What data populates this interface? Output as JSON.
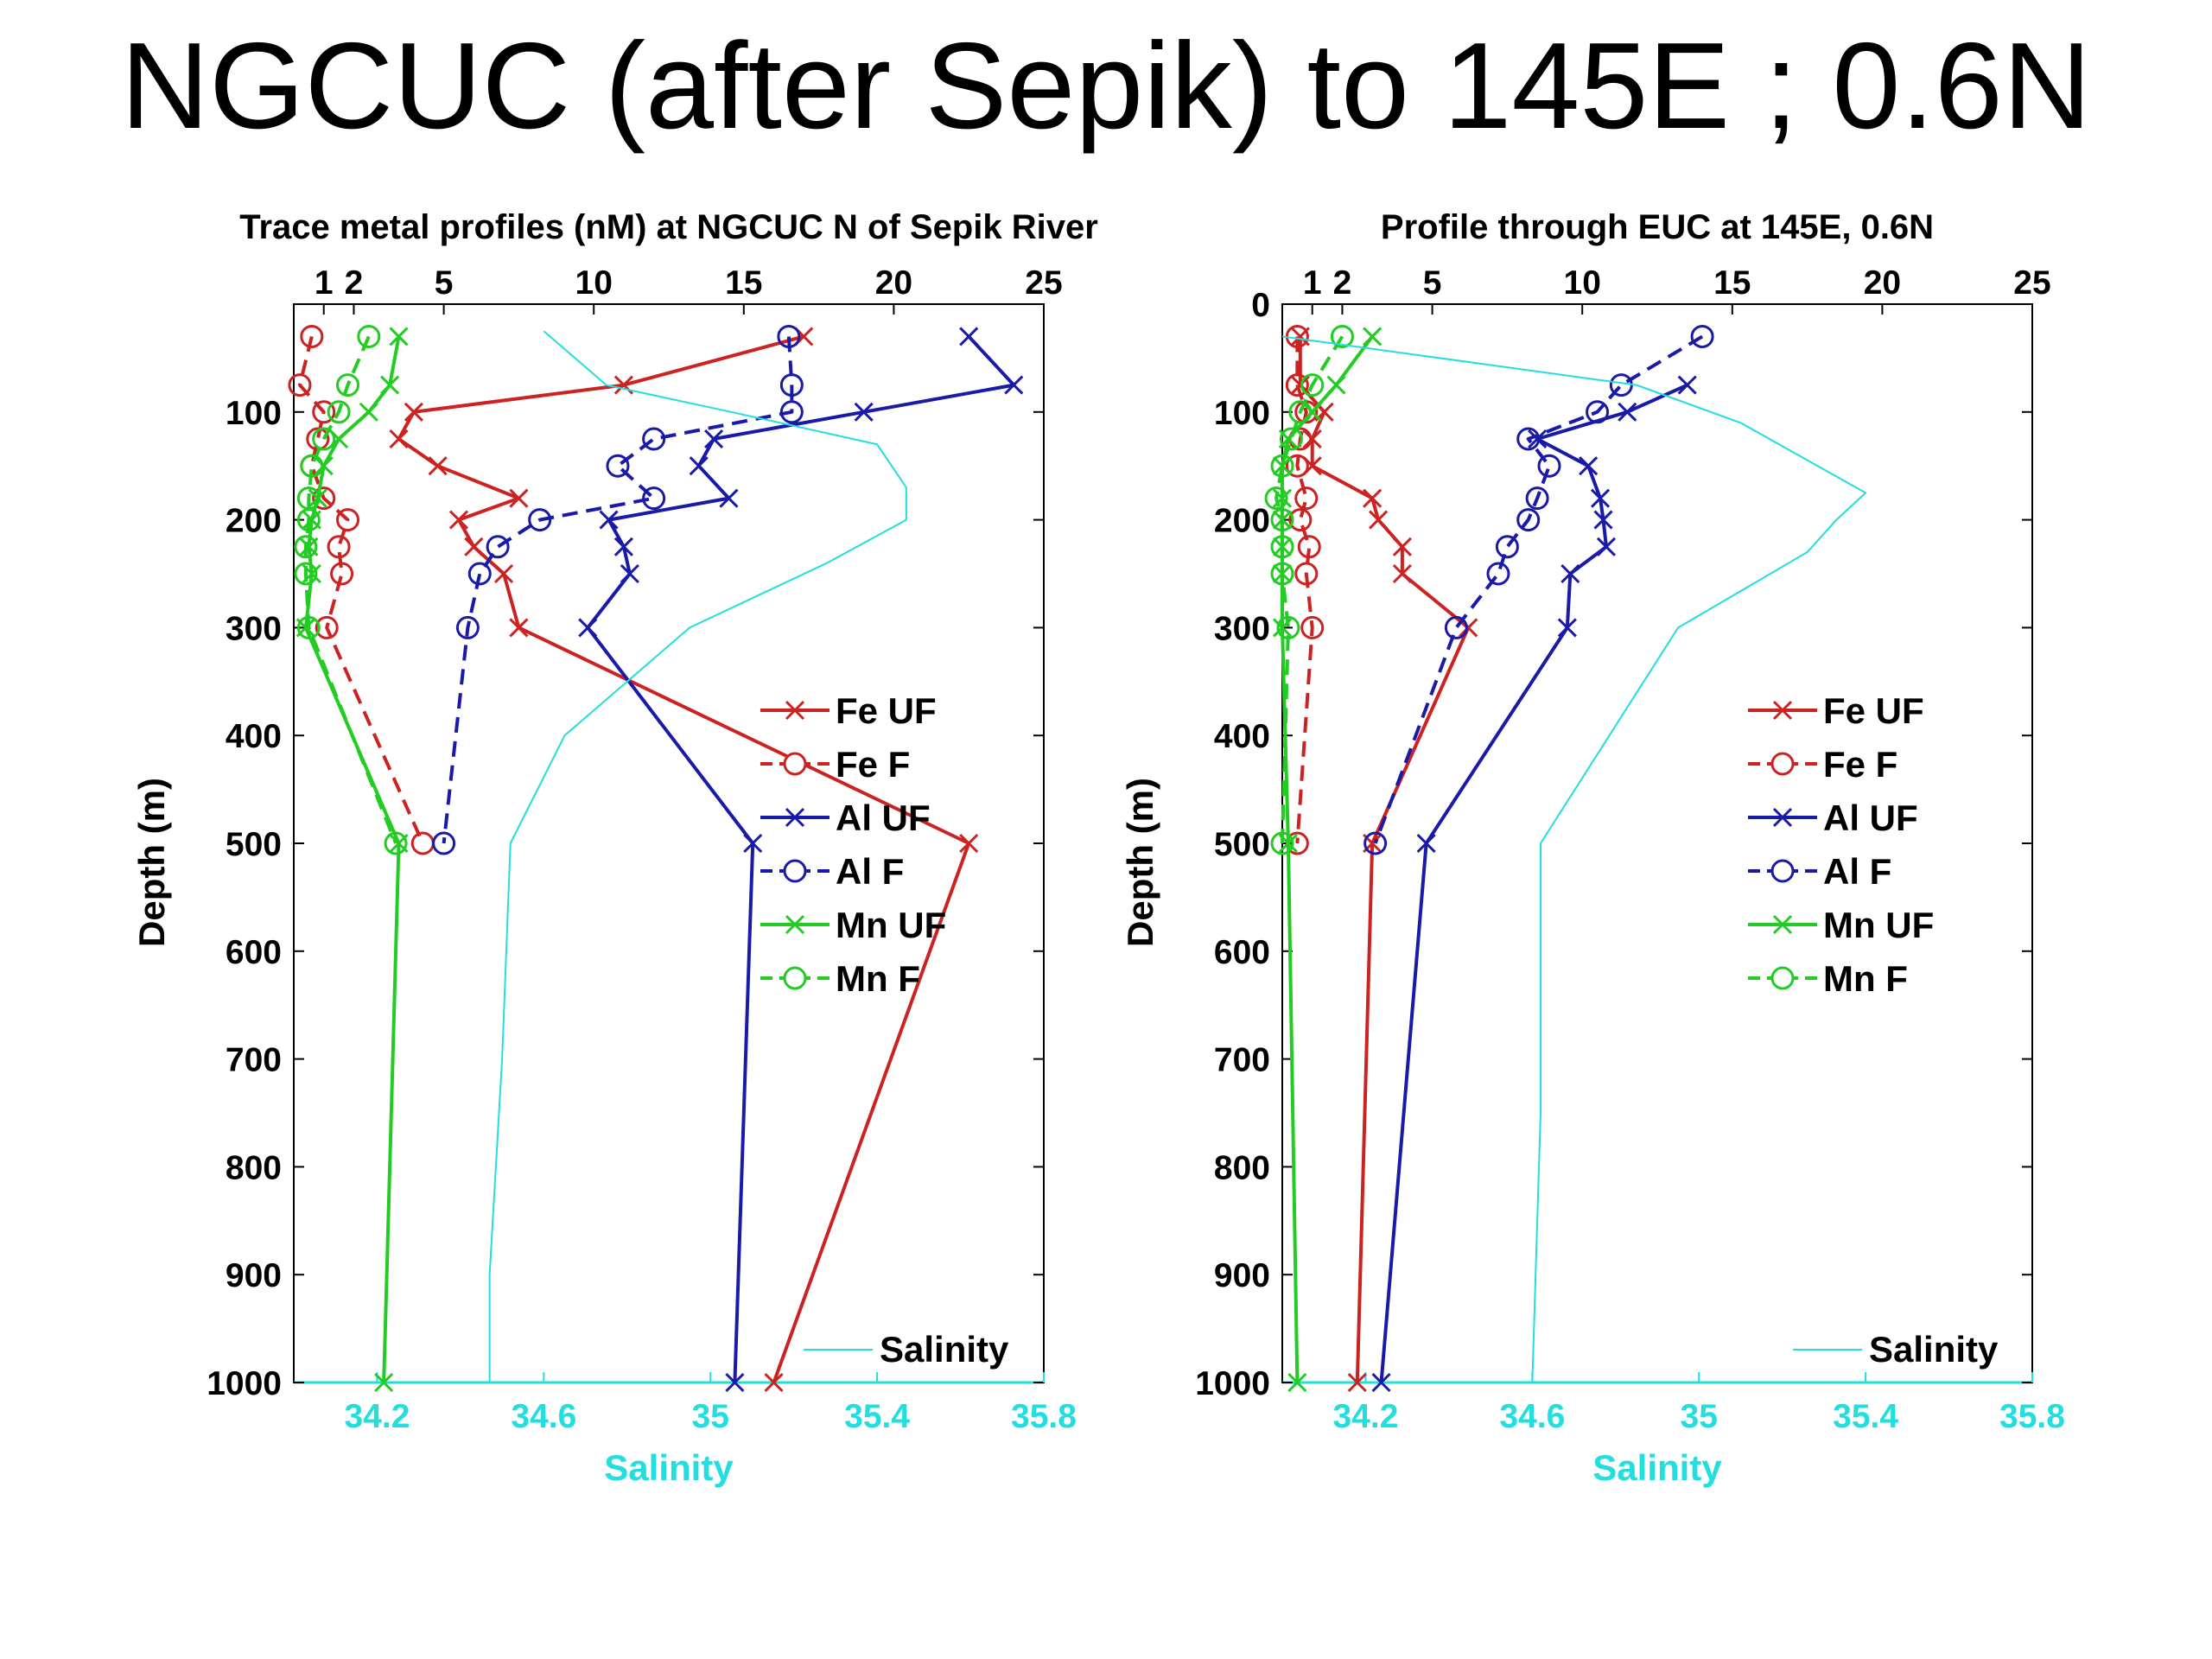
{
  "title": "NGCUC (after Sepik) to 145E ; 0.6N",
  "chart_data": [
    {
      "type": "line",
      "title": "Trace metal profiles (nM) at NGCUC N of Sepik River",
      "ylabel": "Depth (m)",
      "xlabel_bottom": "Salinity",
      "ylim": [
        1000,
        0
      ],
      "xlim_top": [
        0,
        25
      ],
      "xlim_bottom": [
        34.0,
        35.8
      ],
      "yticks": [
        100,
        200,
        300,
        400,
        500,
        600,
        700,
        800,
        900,
        1000
      ],
      "xticks_top": [
        1,
        2,
        5,
        10,
        15,
        20,
        25
      ],
      "xticks_bottom": [
        34.2,
        34.6,
        35,
        35.4,
        35.8
      ],
      "legend_placement": "right",
      "series": [
        {
          "name": "Fe UF",
          "color": "#cc2222",
          "dashed": false,
          "marker": "x",
          "points": [
            [
              17,
              30
            ],
            [
              11,
              75
            ],
            [
              4,
              100
            ],
            [
              3.5,
              125
            ],
            [
              4.8,
              150
            ],
            [
              7.5,
              180
            ],
            [
              5.5,
              200
            ],
            [
              6,
              225
            ],
            [
              7,
              250
            ],
            [
              7.5,
              300
            ],
            [
              22.5,
              500
            ],
            [
              16,
              1000
            ]
          ]
        },
        {
          "name": "Fe F",
          "color": "#cc2222",
          "dashed": true,
          "marker": "o",
          "points": [
            [
              0.6,
              30
            ],
            [
              0.2,
              75
            ],
            [
              1,
              100
            ],
            [
              0.8,
              125
            ],
            [
              0.6,
              150
            ],
            [
              1,
              180
            ],
            [
              1.8,
              200
            ],
            [
              1.5,
              225
            ],
            [
              1.6,
              250
            ],
            [
              1.1,
              300
            ],
            [
              4.3,
              500
            ]
          ]
        },
        {
          "name": "Al UF",
          "color": "#1a1aa8",
          "dashed": false,
          "marker": "x",
          "points": [
            [
              22.5,
              30
            ],
            [
              24,
              75
            ],
            [
              19,
              100
            ],
            [
              14,
              125
            ],
            [
              13.5,
              150
            ],
            [
              14.5,
              180
            ],
            [
              10.5,
              200
            ],
            [
              11,
              225
            ],
            [
              11.2,
              250
            ],
            [
              9.8,
              300
            ],
            [
              15.3,
              500
            ],
            [
              14.7,
              1000
            ]
          ]
        },
        {
          "name": "Al F",
          "color": "#1a1aa8",
          "dashed": true,
          "marker": "o",
          "points": [
            [
              16.5,
              30
            ],
            [
              16.6,
              75
            ],
            [
              16.6,
              100
            ],
            [
              12,
              125
            ],
            [
              10.8,
              150
            ],
            [
              12,
              180
            ],
            [
              8.2,
              200
            ],
            [
              6.8,
              225
            ],
            [
              6.2,
              250
            ],
            [
              5.8,
              300
            ],
            [
              5,
              500
            ]
          ]
        },
        {
          "name": "Mn UF",
          "color": "#22cc22",
          "dashed": false,
          "marker": "x",
          "points": [
            [
              3.5,
              30
            ],
            [
              3.2,
              75
            ],
            [
              2.5,
              100
            ],
            [
              1.5,
              125
            ],
            [
              1,
              150
            ],
            [
              0.8,
              180
            ],
            [
              0.6,
              200
            ],
            [
              0.5,
              225
            ],
            [
              0.6,
              250
            ],
            [
              0.4,
              300
            ],
            [
              3.5,
              500
            ],
            [
              3,
              1000
            ]
          ]
        },
        {
          "name": "Mn F",
          "color": "#22cc22",
          "dashed": true,
          "marker": "o",
          "points": [
            [
              2.5,
              30
            ],
            [
              1.8,
              75
            ],
            [
              1.5,
              100
            ],
            [
              1,
              125
            ],
            [
              0.6,
              150
            ],
            [
              0.5,
              180
            ],
            [
              0.5,
              200
            ],
            [
              0.4,
              225
            ],
            [
              0.4,
              250
            ],
            [
              0.5,
              300
            ],
            [
              3.4,
              500
            ]
          ]
        },
        {
          "name": "Salinity",
          "color": "#22dede",
          "dashed": false,
          "marker": "none",
          "axis": "bottom",
          "points": [
            [
              34.6,
              25
            ],
            [
              34.75,
              75
            ],
            [
              35.05,
              100
            ],
            [
              35.4,
              130
            ],
            [
              35.47,
              170
            ],
            [
              35.47,
              200
            ],
            [
              35.28,
              240
            ],
            [
              34.95,
              300
            ],
            [
              34.65,
              400
            ],
            [
              34.52,
              500
            ],
            [
              34.5,
              700
            ],
            [
              34.47,
              900
            ],
            [
              34.47,
              1000
            ]
          ]
        }
      ]
    },
    {
      "type": "line",
      "title": "Profile through EUC at 145E, 0.6N",
      "ylabel": "Depth (m)",
      "xlabel_bottom": "Salinity",
      "ylim": [
        1000,
        0
      ],
      "xlim_top": [
        0,
        25
      ],
      "xlim_bottom": [
        34.0,
        35.8
      ],
      "yticks": [
        0,
        100,
        200,
        300,
        400,
        500,
        600,
        700,
        800,
        900,
        1000
      ],
      "xticks_top": [
        1,
        2,
        5,
        10,
        15,
        20,
        25
      ],
      "xticks_bottom": [
        34.2,
        34.6,
        35,
        35.4,
        35.8
      ],
      "legend_placement": "right",
      "series": [
        {
          "name": "Fe UF",
          "color": "#cc2222",
          "dashed": false,
          "marker": "x",
          "points": [
            [
              0.6,
              30
            ],
            [
              0.6,
              75
            ],
            [
              1.4,
              100
            ],
            [
              1,
              125
            ],
            [
              1,
              150
            ],
            [
              3,
              180
            ],
            [
              3.2,
              200
            ],
            [
              4,
              225
            ],
            [
              4,
              250
            ],
            [
              6.2,
              300
            ],
            [
              3,
              500
            ],
            [
              2.5,
              1000
            ]
          ]
        },
        {
          "name": "Fe F",
          "color": "#cc2222",
          "dashed": true,
          "marker": "o",
          "points": [
            [
              0.5,
              30
            ],
            [
              0.5,
              75
            ],
            [
              0.8,
              100
            ],
            [
              0.6,
              125
            ],
            [
              0.5,
              150
            ],
            [
              0.8,
              180
            ],
            [
              0.6,
              200
            ],
            [
              0.9,
              225
            ],
            [
              0.8,
              250
            ],
            [
              1,
              300
            ],
            [
              0.5,
              500
            ]
          ]
        },
        {
          "name": "Al UF",
          "color": "#1a1aa8",
          "dashed": false,
          "marker": "x",
          "points": [
            [
              13.5,
              75
            ],
            [
              11.5,
              100
            ],
            [
              8.5,
              125
            ],
            [
              10.2,
              150
            ],
            [
              10.6,
              180
            ],
            [
              10.7,
              200
            ],
            [
              10.8,
              225
            ],
            [
              9.6,
              250
            ],
            [
              9.5,
              300
            ],
            [
              4.8,
              500
            ],
            [
              3.3,
              1000
            ]
          ]
        },
        {
          "name": "Al F",
          "color": "#1a1aa8",
          "dashed": true,
          "marker": "o",
          "points": [
            [
              14,
              30
            ],
            [
              11.3,
              75
            ],
            [
              10.5,
              100
            ],
            [
              8.2,
              125
            ],
            [
              8.9,
              150
            ],
            [
              8.5,
              180
            ],
            [
              8.2,
              200
            ],
            [
              7.5,
              225
            ],
            [
              7.2,
              250
            ],
            [
              5.8,
              300
            ],
            [
              3.1,
              500
            ]
          ]
        },
        {
          "name": "Mn UF",
          "color": "#22cc22",
          "dashed": false,
          "marker": "x",
          "points": [
            [
              3,
              30
            ],
            [
              1.8,
              75
            ],
            [
              1,
              100
            ],
            [
              0.2,
              125
            ],
            [
              0,
              150
            ],
            [
              0,
              180
            ],
            [
              0,
              200
            ],
            [
              0,
              225
            ],
            [
              0,
              250
            ],
            [
              0,
              300
            ],
            [
              0.2,
              500
            ],
            [
              0.5,
              1000
            ]
          ]
        },
        {
          "name": "Mn F",
          "color": "#22cc22",
          "dashed": true,
          "marker": "o",
          "points": [
            [
              2,
              30
            ],
            [
              1,
              75
            ],
            [
              0.6,
              100
            ],
            [
              0.3,
              125
            ],
            [
              0,
              150
            ],
            [
              -0.2,
              180
            ],
            [
              0,
              200
            ],
            [
              0,
              225
            ],
            [
              0,
              250
            ],
            [
              0.2,
              300
            ],
            [
              0,
              500
            ]
          ]
        },
        {
          "name": "Salinity",
          "color": "#22dede",
          "dashed": false,
          "marker": "none",
          "axis": "bottom",
          "points": [
            [
              34.0,
              30
            ],
            [
              34.85,
              75
            ],
            [
              35.1,
              110
            ],
            [
              35.4,
              175
            ],
            [
              35.33,
              200
            ],
            [
              35.26,
              230
            ],
            [
              34.95,
              300
            ],
            [
              34.62,
              500
            ],
            [
              34.62,
              750
            ],
            [
              34.6,
              1000
            ]
          ]
        }
      ]
    }
  ]
}
